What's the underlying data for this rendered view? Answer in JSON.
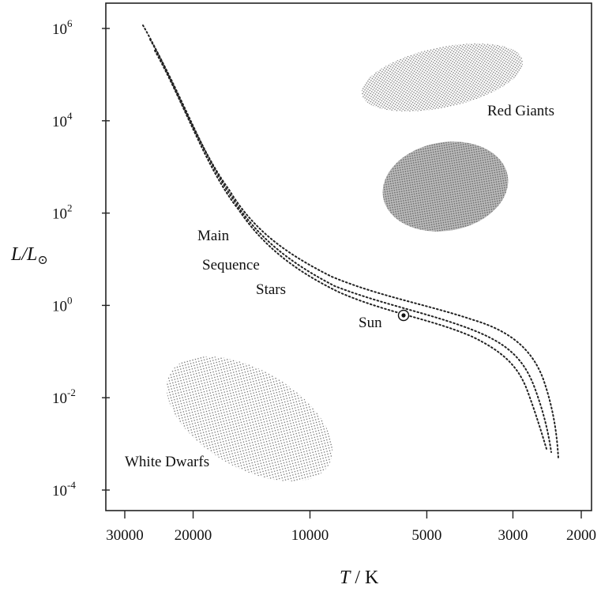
{
  "diagram": {
    "y_axis_label": "L/L",
    "y_axis_label_sub": "⊙",
    "x_axis_label_italic": "T",
    "x_axis_label_rest": " / K",
    "y_ticks": [
      {
        "base": "10",
        "exp": "6",
        "value": 1000000
      },
      {
        "base": "10",
        "exp": "4",
        "value": 10000
      },
      {
        "base": "10",
        "exp": "2",
        "value": 100
      },
      {
        "base": "10",
        "exp": "0",
        "value": 1
      },
      {
        "base": "10",
        "exp": "-2",
        "value": 0.01
      },
      {
        "base": "10",
        "exp": "-4",
        "value": 0.0001
      }
    ],
    "x_ticks": [
      {
        "label": "30000",
        "value": 30000
      },
      {
        "label": "20000",
        "value": 20000
      },
      {
        "label": "10000",
        "value": 10000
      },
      {
        "label": "5000",
        "value": 5000
      },
      {
        "label": "3000",
        "value": 3000
      },
      {
        "label": "2000",
        "value": 2000
      }
    ],
    "x_scale": "log-reversed",
    "y_scale": "log",
    "regions": {
      "red_giants": "Red Giants",
      "white_dwarfs": "White Dwarfs"
    },
    "main_sequence_label": [
      "Main",
      "Sequence",
      "Stars"
    ],
    "sun_label": "Sun",
    "sun_symbol": "⊙"
  }
}
